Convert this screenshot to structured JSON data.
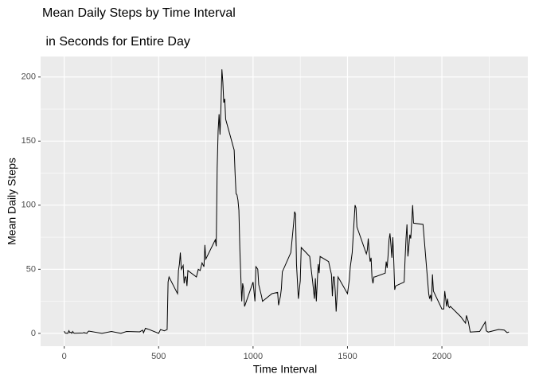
{
  "chart_data": {
    "type": "line",
    "title": "Mean Daily Steps by Time Interval",
    "subtitle": " in Seconds for Entire Day",
    "xlabel": "Time Interval",
    "ylabel": "Mean Daily Steps",
    "color": "#000000",
    "grid": true,
    "xlim": [
      -125,
      2455
    ],
    "ylim": [
      -10,
      216
    ],
    "xticks": [
      0,
      500,
      1000,
      1500,
      2000
    ],
    "yticks": [
      0,
      50,
      100,
      150,
      200
    ],
    "xminor": [
      250,
      750,
      1250,
      1750,
      2250
    ],
    "yminor": [
      25,
      75,
      125,
      175
    ],
    "x": [
      0,
      5,
      10,
      15,
      20,
      25,
      30,
      35,
      40,
      45,
      50,
      55,
      100,
      105,
      110,
      115,
      120,
      125,
      130,
      200,
      250,
      300,
      330,
      400,
      415,
      420,
      430,
      440,
      450,
      500,
      510,
      530,
      545,
      550,
      555,
      600,
      605,
      610,
      615,
      620,
      630,
      635,
      640,
      645,
      650,
      655,
      700,
      710,
      720,
      730,
      740,
      745,
      750,
      800,
      805,
      810,
      815,
      820,
      825,
      830,
      835,
      840,
      845,
      850,
      855,
      900,
      905,
      910,
      915,
      920,
      925,
      930,
      935,
      940,
      945,
      950,
      955,
      1000,
      1010,
      1015,
      1025,
      1030,
      1045,
      1050,
      1100,
      1130,
      1135,
      1145,
      1150,
      1155,
      1200,
      1215,
      1220,
      1225,
      1230,
      1240,
      1250,
      1255,
      1300,
      1315,
      1325,
      1330,
      1335,
      1340,
      1345,
      1350,
      1355,
      1400,
      1415,
      1420,
      1425,
      1430,
      1435,
      1440,
      1445,
      1450,
      1500,
      1510,
      1515,
      1525,
      1540,
      1545,
      1550,
      1600,
      1605,
      1610,
      1615,
      1620,
      1625,
      1630,
      1635,
      1640,
      1645,
      1700,
      1705,
      1710,
      1715,
      1720,
      1725,
      1730,
      1735,
      1740,
      1745,
      1750,
      1755,
      1800,
      1805,
      1810,
      1815,
      1820,
      1825,
      1830,
      1835,
      1840,
      1845,
      1850,
      1900,
      1930,
      1935,
      1940,
      1945,
      1950,
      1955,
      2000,
      2005,
      2010,
      2015,
      2020,
      2025,
      2030,
      2035,
      2040,
      2045,
      2100,
      2125,
      2130,
      2140,
      2150,
      2200,
      2230,
      2235,
      2245,
      2300,
      2330,
      2345,
      2355
    ],
    "values": [
      1.7,
      0.3,
      0.1,
      0.2,
      0.1,
      2.1,
      0.5,
      0.9,
      0,
      1.5,
      0.3,
      0.1,
      0.3,
      0.7,
      0.2,
      0.3,
      0,
      1.1,
      1.8,
      0,
      1.5,
      0,
      1.5,
      1.2,
      2.5,
      0.4,
      4,
      3.5,
      3,
      0,
      3,
      2,
      3,
      40,
      44,
      31,
      49,
      54,
      63,
      50,
      53,
      39,
      44,
      44,
      37,
      49,
      44,
      50,
      49,
      55,
      52,
      69,
      58,
      73,
      68,
      129,
      158,
      171,
      155,
      177,
      206,
      196,
      180,
      183,
      167,
      143,
      124,
      109,
      108,
      104,
      96,
      66,
      45,
      25,
      39,
      35,
      21,
      40,
      25,
      52,
      50,
      38,
      29,
      25,
      31,
      32,
      22,
      29,
      35,
      48,
      63,
      86,
      95,
      93,
      54,
      27,
      41,
      67,
      60,
      41,
      27,
      43,
      25,
      40,
      54,
      47,
      60,
      56,
      46,
      29,
      44,
      44,
      33,
      17,
      30,
      44,
      31,
      42,
      52,
      63,
      100,
      98,
      83,
      62,
      65,
      74,
      63,
      56,
      59,
      43,
      39,
      44,
      44,
      47,
      56,
      51,
      61,
      73,
      78,
      69,
      59,
      75,
      57,
      34,
      37,
      40,
      58,
      74,
      85,
      60,
      68,
      77,
      74,
      86,
      100,
      86,
      85,
      31,
      27,
      30,
      25,
      46,
      33,
      19,
      19,
      19,
      33,
      27,
      21,
      27,
      21,
      20,
      21,
      13,
      8,
      14,
      9,
      1,
      1.5,
      9,
      2,
      1,
      3,
      2.6,
      0.6,
      1.1
    ]
  }
}
